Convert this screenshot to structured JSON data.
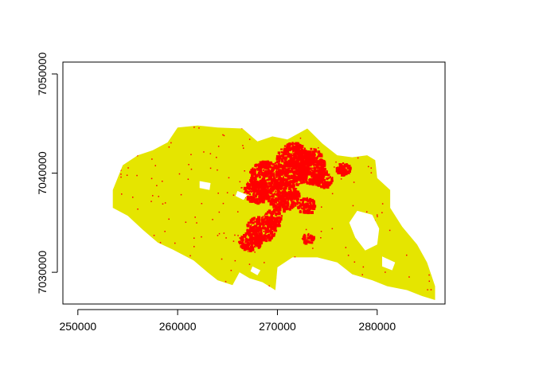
{
  "chart_data": {
    "type": "raster-map",
    "title": "",
    "xlabel": "",
    "ylabel": "",
    "xlim": [
      248500,
      286800
    ],
    "ylim": [
      7026800,
      7051200
    ],
    "x_ticks": [
      250000,
      260000,
      270000,
      280000
    ],
    "x_tick_labels": [
      "250000",
      "260000",
      "270000",
      "280000"
    ],
    "y_ticks": [
      7030000,
      7040000,
      7050000
    ],
    "y_tick_labels": [
      "7030000",
      "7040000",
      "7050000"
    ],
    "classes": [
      {
        "color": "#e5e500",
        "role": "region-fill"
      },
      {
        "color": "#ff0000",
        "role": "highlighted-cells"
      }
    ],
    "grid": false,
    "legend": "none",
    "region_outline": [
      [
        253500,
        7038300
      ],
      [
        254500,
        7040800
      ],
      [
        256000,
        7041800
      ],
      [
        257500,
        7042300
      ],
      [
        259000,
        7043100
      ],
      [
        260000,
        7044600
      ],
      [
        262000,
        7044800
      ],
      [
        264000,
        7044600
      ],
      [
        266500,
        7044500
      ],
      [
        268000,
        7043200
      ],
      [
        269500,
        7043700
      ],
      [
        271000,
        7043400
      ],
      [
        273000,
        7044500
      ],
      [
        274500,
        7043000
      ],
      [
        276000,
        7041800
      ],
      [
        277500,
        7041600
      ],
      [
        279000,
        7041800
      ],
      [
        279800,
        7041300
      ],
      [
        280000,
        7039500
      ],
      [
        281300,
        7038300
      ],
      [
        281300,
        7036500
      ],
      [
        282500,
        7034600
      ],
      [
        284000,
        7032800
      ],
      [
        285000,
        7031000
      ],
      [
        285800,
        7028600
      ],
      [
        285800,
        7027200
      ],
      [
        284500,
        7027600
      ],
      [
        283000,
        7028200
      ],
      [
        281000,
        7028600
      ],
      [
        279500,
        7029200
      ],
      [
        277500,
        7029800
      ],
      [
        276000,
        7031000
      ],
      [
        274000,
        7031500
      ],
      [
        271500,
        7031500
      ],
      [
        270000,
        7030500
      ],
      [
        269800,
        7028200
      ],
      [
        268500,
        7029000
      ],
      [
        267200,
        7029400
      ],
      [
        266200,
        7030000
      ],
      [
        265500,
        7028700
      ],
      [
        264000,
        7029200
      ],
      [
        263000,
        7030000
      ],
      [
        261600,
        7031200
      ],
      [
        259500,
        7032300
      ],
      [
        258000,
        7033000
      ],
      [
        256500,
        7034300
      ],
      [
        255000,
        7035700
      ],
      [
        253500,
        7036500
      ]
    ],
    "holes": [
      [
        [
          278000,
          7036200
        ],
        [
          279500,
          7035800
        ],
        [
          280200,
          7034400
        ],
        [
          280000,
          7032800
        ],
        [
          278800,
          7032200
        ],
        [
          277800,
          7033500
        ],
        [
          277200,
          7035000
        ]
      ],
      [
        [
          280500,
          7031600
        ],
        [
          281800,
          7031000
        ],
        [
          281500,
          7030200
        ],
        [
          280500,
          7030600
        ]
      ],
      [
        [
          262200,
          7039200
        ],
        [
          263300,
          7039000
        ],
        [
          263200,
          7038300
        ],
        [
          262200,
          7038500
        ]
      ],
      [
        [
          266000,
          7038200
        ],
        [
          267000,
          7037800
        ],
        [
          266600,
          7037300
        ],
        [
          265800,
          7037700
        ]
      ],
      [
        [
          267500,
          7030600
        ],
        [
          268300,
          7030200
        ],
        [
          268000,
          7029700
        ],
        [
          267300,
          7030100
        ]
      ]
    ],
    "red_clusters": [
      {
        "x": 271500,
        "y": 7041000,
        "rx": 1800,
        "ry": 2200
      },
      {
        "x": 268700,
        "y": 7039800,
        "rx": 1600,
        "ry": 1500
      },
      {
        "x": 273200,
        "y": 7040800,
        "rx": 1500,
        "ry": 1800
      },
      {
        "x": 270500,
        "y": 7037800,
        "rx": 1600,
        "ry": 1500
      },
      {
        "x": 267800,
        "y": 7038200,
        "rx": 1300,
        "ry": 1200
      },
      {
        "x": 268300,
        "y": 7034500,
        "rx": 1500,
        "ry": 1300
      },
      {
        "x": 267200,
        "y": 7033200,
        "rx": 1200,
        "ry": 900
      },
      {
        "x": 269500,
        "y": 7035500,
        "rx": 900,
        "ry": 1000
      },
      {
        "x": 274500,
        "y": 7039500,
        "rx": 900,
        "ry": 900
      },
      {
        "x": 276500,
        "y": 7040500,
        "rx": 700,
        "ry": 600
      },
      {
        "x": 272800,
        "y": 7036800,
        "rx": 900,
        "ry": 800
      },
      {
        "x": 273000,
        "y": 7033500,
        "rx": 600,
        "ry": 500
      }
    ]
  }
}
